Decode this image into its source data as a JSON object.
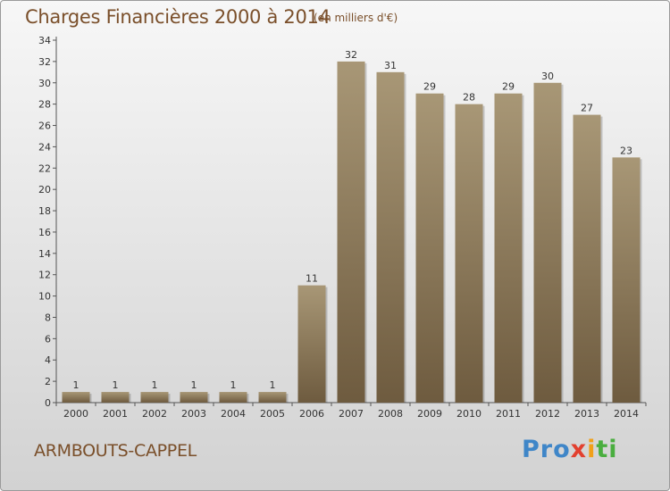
{
  "header": {
    "title": "Charges Financières 2000 à 2014",
    "unit": "(en milliers d'€)"
  },
  "footer": {
    "commune": "ARMBOUTS-CAPPEL",
    "logo_parts": [
      "Pro",
      "x",
      "i",
      "ti"
    ]
  },
  "colors": {
    "bar_top": "#a89776",
    "bar_bottom": "#6e5b3f",
    "text_accent": "#7a4f2a",
    "grid": "#b8b8b8"
  },
  "chart_data": {
    "type": "bar",
    "title": "Charges Financières 2000 à 2014",
    "subtitle": "(en milliers d'€)",
    "categories": [
      "2000",
      "2001",
      "2002",
      "2003",
      "2004",
      "2005",
      "2006",
      "2007",
      "2008",
      "2009",
      "2010",
      "2011",
      "2012",
      "2013",
      "2014"
    ],
    "values": [
      1,
      1,
      1,
      1,
      1,
      1,
      11,
      32,
      31,
      29,
      28,
      29,
      30,
      27,
      23
    ],
    "yticks": [
      0,
      2,
      4,
      6,
      8,
      10,
      12,
      14,
      16,
      18,
      20,
      22,
      24,
      26,
      28,
      30,
      32,
      34
    ],
    "ylim": [
      0,
      34
    ],
    "grid": false,
    "xlabel": "",
    "ylabel": ""
  }
}
